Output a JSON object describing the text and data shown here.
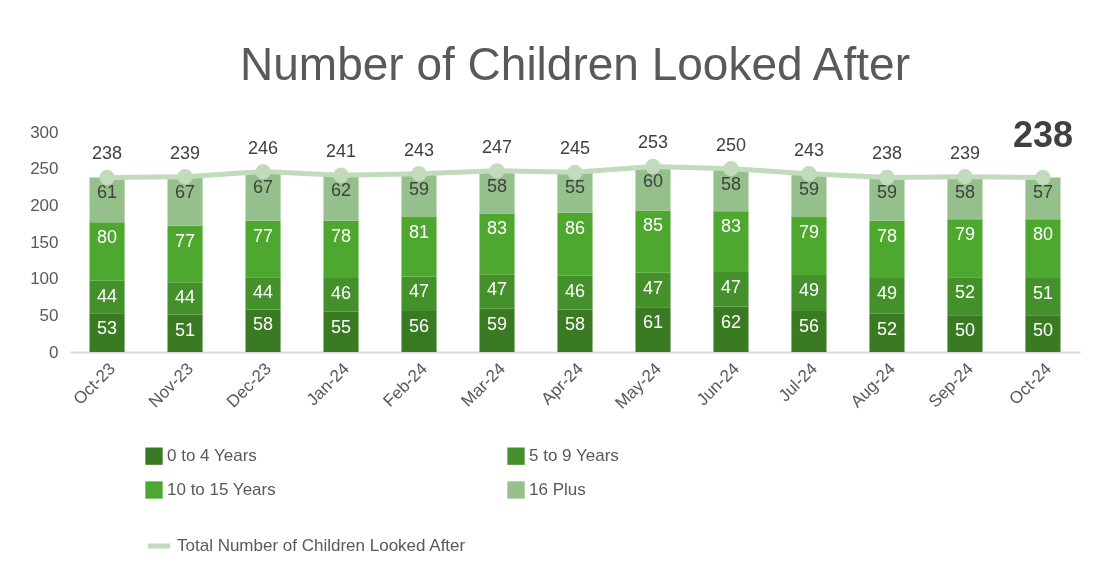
{
  "chart_data": {
    "type": "bar",
    "title": "Number of Children Looked After",
    "categories": [
      "Oct-23",
      "Nov-23",
      "Dec-23",
      "Jan-24",
      "Feb-24",
      "Mar-24",
      "Apr-24",
      "May-24",
      "Jun-24",
      "Jul-24",
      "Aug-24",
      "Sep-24",
      "Oct-24"
    ],
    "stacked": true,
    "data_labels": true,
    "grid": false,
    "legend": "bottom",
    "marker": "circle",
    "ylim": [
      0,
      300
    ],
    "yticks": [
      0,
      50,
      100,
      150,
      200,
      250,
      300
    ],
    "series": [
      {
        "name": "0 to 4 Years",
        "color": "#3a7a23",
        "values": [
          53,
          51,
          58,
          55,
          56,
          59,
          58,
          61,
          62,
          56,
          52,
          50,
          50
        ]
      },
      {
        "name": "5 to 9 Years",
        "color": "#44902a",
        "values": [
          44,
          44,
          44,
          46,
          47,
          47,
          46,
          47,
          47,
          49,
          49,
          52,
          51
        ]
      },
      {
        "name": "10 to 15 Years",
        "color": "#4ea72e",
        "values": [
          80,
          77,
          77,
          78,
          81,
          83,
          86,
          85,
          83,
          79,
          78,
          79,
          80
        ]
      },
      {
        "name": "16 Plus",
        "color": "#95c08b",
        "values": [
          61,
          67,
          67,
          62,
          59,
          58,
          55,
          60,
          58,
          59,
          59,
          58,
          57
        ]
      },
      {
        "name": "Total Number of Children Looked After",
        "type": "line",
        "color": "#c1dbbc",
        "values": [
          238,
          239,
          246,
          241,
          243,
          247,
          245,
          253,
          250,
          243,
          238,
          239,
          238
        ]
      }
    ]
  }
}
